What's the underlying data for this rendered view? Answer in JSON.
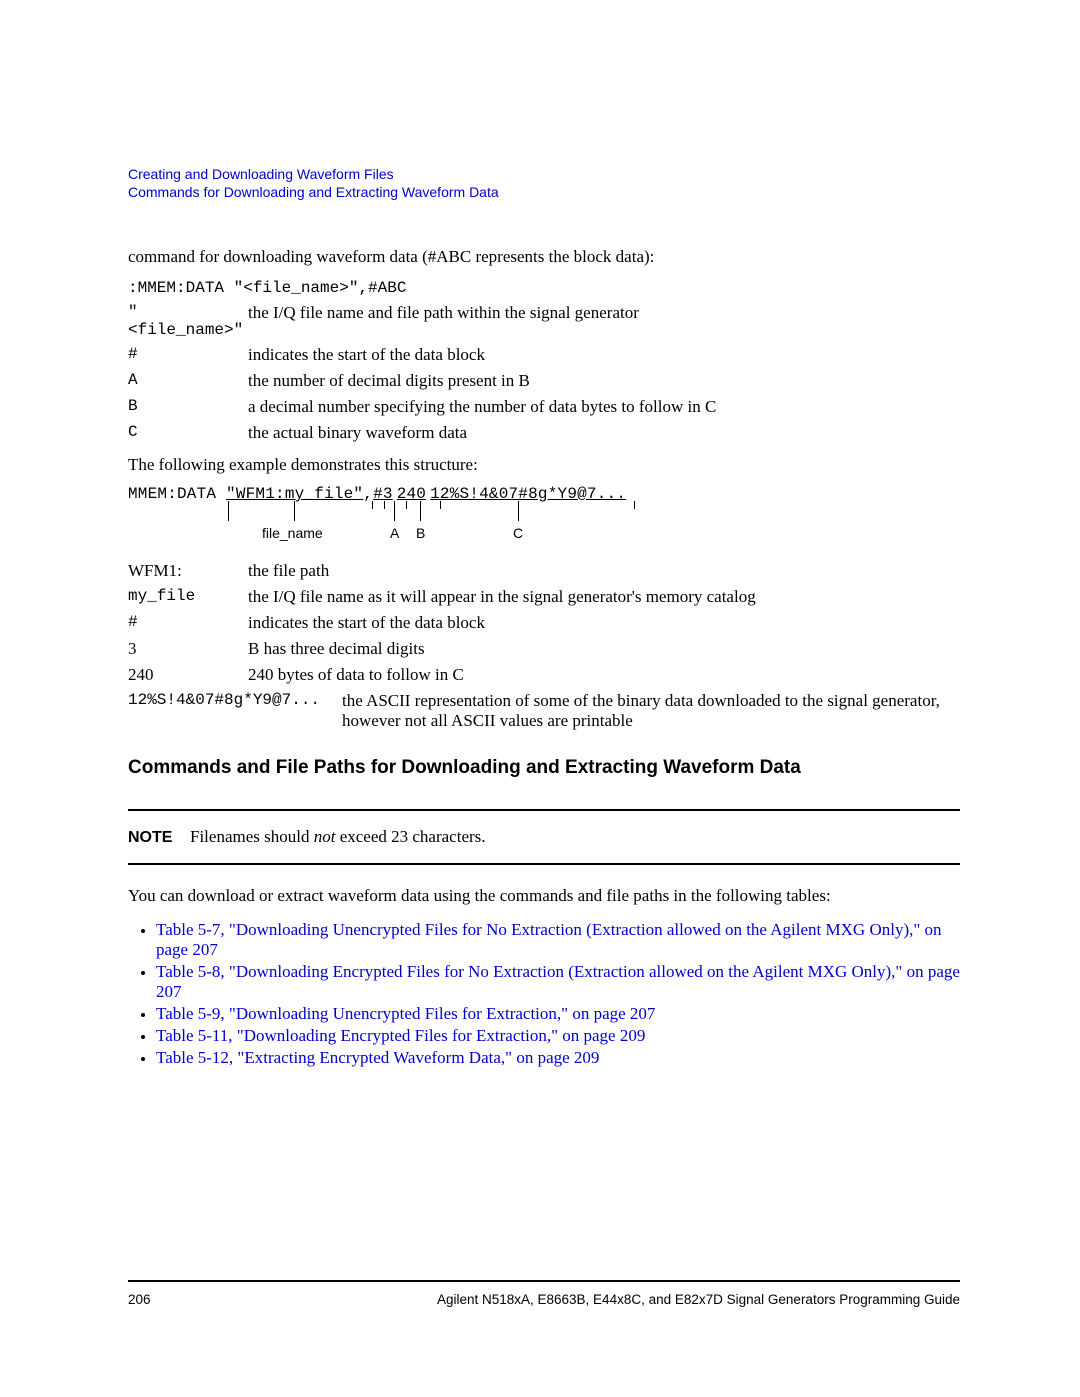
{
  "header": {
    "line1": "Creating and Downloading Waveform Files",
    "line2": "Commands for Downloading and Extracting Waveform Data"
  },
  "intro": "command for downloading waveform data (#ABC represents the block data):",
  "syntax": ":MMEM:DATA \"<file_name>\",#ABC",
  "defs1": [
    {
      "term": "\"<file_name>\"",
      "mono": true,
      "desc": "the I/Q file name and file path within the signal generator"
    },
    {
      "term": "#",
      "mono": true,
      "desc": "indicates the start of the data block"
    },
    {
      "term": "A",
      "mono": true,
      "desc": "the number of decimal digits present in B"
    },
    {
      "term": "B",
      "mono": true,
      "desc": "a decimal number specifying the number of data bytes to follow in C"
    },
    {
      "term": "C",
      "mono": true,
      "desc": "the actual binary waveform data"
    }
  ],
  "example_intro": "The following example demonstrates this structure:",
  "diagram": {
    "prefix": "MMEM:DATA ",
    "seg_file": "\"WFM1:my_file\"",
    "comma1": ",",
    "seg_hash": "#",
    "seg_a": "3",
    "comma2": " ",
    "seg_b": "240",
    "comma3": " ",
    "seg_c": "12%S!4&07#8g*Y9@7...",
    "labels": {
      "file": "file_name",
      "a": "A",
      "b": "B",
      "c": "C"
    }
  },
  "defs2": [
    {
      "term": "WFM1:",
      "mono": false,
      "desc": "the file path"
    },
    {
      "term": "my_file",
      "mono": true,
      "desc": "the I/Q file name as it will appear in the signal generator's memory catalog"
    },
    {
      "term": "#",
      "mono": true,
      "desc": "indicates the start of the data block"
    },
    {
      "term": "3",
      "mono": false,
      "desc": "B has three decimal digits"
    },
    {
      "term": "240",
      "mono": false,
      "desc": "240 bytes of data to follow in C"
    }
  ],
  "defs2_last": {
    "term": "12%S!4&07#8g*Y9@7...",
    "desc": "the ASCII representation of some of the binary data downloaded to the signal generator, however not all ASCII values are printable"
  },
  "section_heading": "Commands and File Paths for Downloading and Extracting Waveform Data",
  "note": {
    "label": "NOTE",
    "pre": "Filenames should ",
    "em": "not",
    "post": " exceed 23 characters."
  },
  "tables_intro": "You can download or extract waveform data using the commands and file paths in the following tables:",
  "bullets": [
    "Table 5-7, \"Downloading Unencrypted Files for No Extraction (Extraction allowed on the Agilent MXG Only),\" on page 207",
    "Table 5-8, \"Downloading Encrypted Files for No Extraction (Extraction allowed on the Agilent MXG Only),\" on page 207",
    "Table 5-9, \"Downloading Unencrypted Files for Extraction,\" on page 207",
    "Table 5-11, \"Downloading Encrypted Files for Extraction,\" on page 209",
    "Table 5-12, \"Extracting Encrypted Waveform Data,\" on page 209"
  ],
  "footer": {
    "page": "206",
    "title": "Agilent N518xA, E8663B, E44x8C, and E82x7D Signal Generators Programming Guide"
  },
  "colors": {
    "link": "#0000cc",
    "text": "#000000",
    "rule": "#000000"
  }
}
